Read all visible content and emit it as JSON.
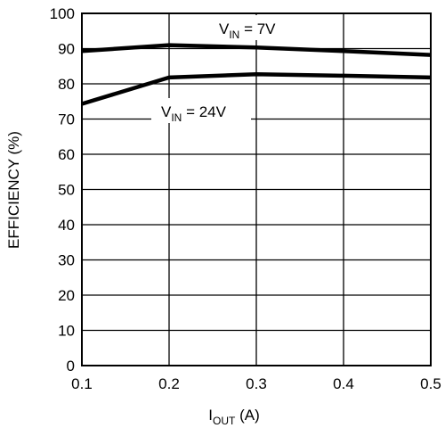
{
  "chart_data": {
    "type": "line",
    "xlabel": {
      "main": "I",
      "sub": "OUT",
      "rest": " (A)"
    },
    "ylabel": "EFFICIENCY (%)",
    "xlim": [
      0.1,
      0.5
    ],
    "ylim": [
      0,
      100
    ],
    "x_ticks": [
      "0.1",
      "0.2",
      "0.3",
      "0.4",
      "0.5"
    ],
    "y_ticks": [
      "0",
      "10",
      "20",
      "30",
      "40",
      "50",
      "60",
      "70",
      "80",
      "90",
      "100"
    ],
    "grid": true,
    "x": [
      0.1,
      0.2,
      0.3,
      0.4,
      0.5
    ],
    "series": [
      {
        "name": "V_IN = 7V",
        "values": [
          89.3,
          91.0,
          90.3,
          89.3,
          88.2
        ],
        "color": "#000000"
      },
      {
        "name": "V_IN = 24V",
        "values": [
          74.3,
          81.8,
          82.7,
          82.3,
          81.8
        ],
        "color": "#000000"
      }
    ],
    "annotations": [
      {
        "main": "V",
        "sub": "IN",
        "rest": " = 7V"
      },
      {
        "main": "V",
        "sub": "IN",
        "rest": " = 24V"
      }
    ]
  }
}
